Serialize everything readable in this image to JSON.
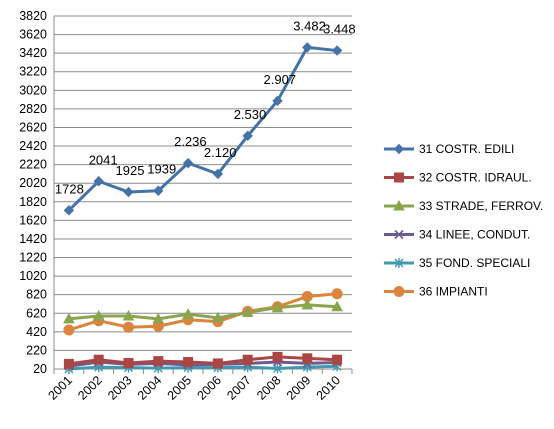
{
  "chart_data": {
    "type": "line",
    "title": "",
    "xlabel": "",
    "ylabel": "",
    "categories": [
      "2001",
      "2002",
      "2003",
      "2004",
      "2005",
      "2006",
      "2007",
      "2008",
      "2009",
      "2010"
    ],
    "ylim": [
      20,
      3820
    ],
    "yticks": [
      20,
      220,
      420,
      620,
      820,
      1020,
      1220,
      1420,
      1620,
      1820,
      2020,
      2220,
      2420,
      2620,
      2820,
      3020,
      3220,
      3420,
      3620,
      3820
    ],
    "grid": "horizontal",
    "legend_position": "right",
    "series": [
      {
        "name": "31 COSTR. EDILI",
        "color": "#4572A7",
        "marker": "diamond",
        "values": [
          1728,
          2041,
          1925,
          1939,
          2236,
          2120,
          2530,
          2907,
          3482,
          3448
        ],
        "labels": [
          "1728",
          "2041",
          "1925",
          "1939",
          "2.236",
          "2.120",
          "2.530",
          "2.907",
          "3.482",
          "3.448"
        ]
      },
      {
        "name": "32 COSTR. IDRAUL.",
        "color": "#AA4643",
        "marker": "square",
        "values": [
          75,
          120,
          85,
          105,
          95,
          80,
          120,
          150,
          135,
          120
        ]
      },
      {
        "name": "33 STRADE, FERROV.",
        "color": "#89A54E",
        "marker": "triangle",
        "values": [
          560,
          590,
          590,
          560,
          610,
          570,
          630,
          680,
          710,
          690
        ]
      },
      {
        "name": "34 LINEE, CONDUT.",
        "color": "#71588F",
        "marker": "x",
        "values": [
          50,
          95,
          70,
          80,
          65,
          70,
          80,
          95,
          80,
          90
        ]
      },
      {
        "name": "35 FOND. SPECIALI",
        "color": "#4198AF",
        "marker": "star",
        "values": [
          20,
          40,
          35,
          30,
          35,
          35,
          40,
          25,
          40,
          50
        ]
      },
      {
        "name": "36 IMPIANTI",
        "color": "#DB843D",
        "marker": "circle",
        "values": [
          440,
          540,
          470,
          480,
          550,
          530,
          640,
          690,
          800,
          830
        ]
      }
    ]
  }
}
